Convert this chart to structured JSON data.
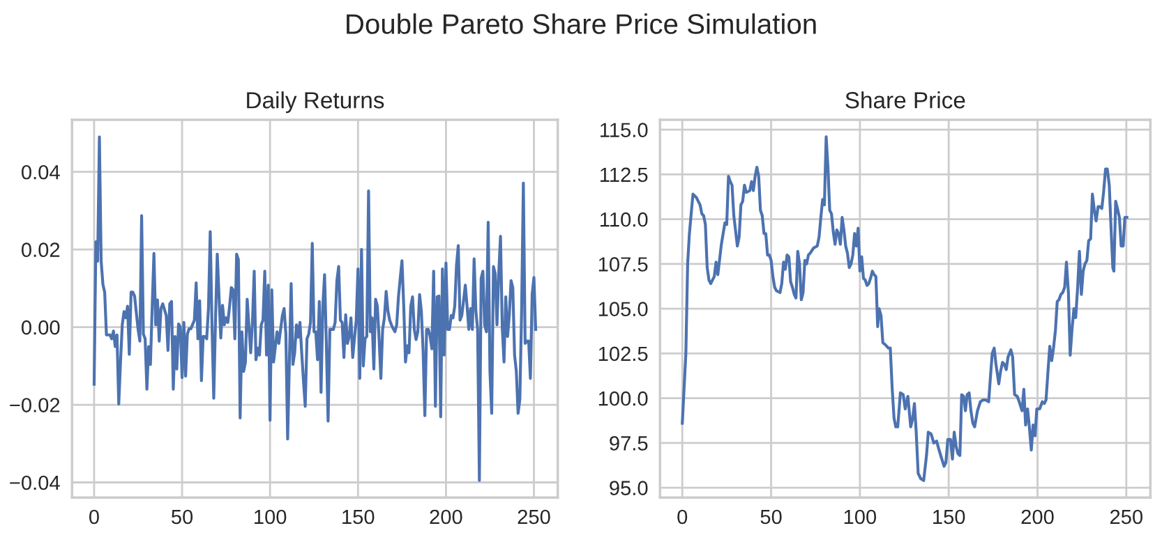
{
  "chart_data": [
    {
      "type": "line",
      "title": "Daily Returns",
      "series": [
        {
          "color": "#4c72b0",
          "x": [
            0,
            1,
            2,
            3,
            4,
            5,
            6,
            7,
            9,
            10,
            11,
            12,
            13,
            14,
            15,
            16,
            17,
            18,
            19,
            20,
            21,
            22,
            23,
            25,
            26,
            27,
            28,
            29,
            30,
            31,
            32,
            33,
            34,
            35,
            36,
            37,
            38,
            39,
            41,
            42,
            43,
            44,
            45,
            46,
            47,
            48,
            49,
            50,
            51,
            52,
            53,
            54,
            55,
            57,
            58,
            59,
            60,
            61,
            62,
            63,
            64,
            65,
            66,
            67,
            68,
            69,
            70,
            72,
            73,
            74,
            75,
            76,
            77,
            78,
            79,
            80,
            81,
            82,
            83,
            84,
            85,
            86,
            87,
            89,
            90,
            91,
            92,
            93,
            94,
            95,
            96,
            97,
            98,
            99,
            100,
            101,
            102,
            104,
            105,
            106,
            107,
            108,
            109,
            110,
            112,
            113,
            114,
            115,
            116,
            117,
            118,
            119,
            120,
            121,
            122,
            123,
            124,
            125,
            126,
            127,
            128,
            129,
            130,
            131,
            132,
            133,
            134,
            135,
            136,
            137,
            138,
            139,
            140,
            141,
            142,
            143,
            144,
            145,
            146,
            147,
            148,
            149,
            150,
            151,
            152,
            153,
            154,
            155,
            156,
            157,
            158,
            159,
            160,
            161,
            162,
            163,
            164,
            165,
            166,
            167,
            168,
            169,
            170,
            171,
            172,
            173,
            174,
            175,
            176,
            177,
            178,
            179,
            180,
            181,
            182,
            183,
            184,
            185,
            186,
            187,
            188,
            189,
            190,
            191,
            192,
            193,
            194,
            195,
            196,
            197,
            198,
            199,
            200,
            201,
            202,
            203,
            204,
            205,
            206,
            207,
            208,
            209,
            210,
            211,
            212,
            213,
            214,
            215,
            216,
            217,
            218,
            219,
            220,
            221,
            222,
            223,
            224,
            225,
            226,
            227,
            228,
            229,
            230,
            231,
            232,
            233,
            234,
            235,
            236,
            237,
            238,
            239,
            240,
            241,
            242,
            243,
            244,
            245,
            246,
            247,
            248,
            249,
            250,
            251
          ],
          "values": [
            -0.0147,
            0.022,
            0.017,
            0.049,
            0.017,
            0.011,
            0.009,
            -0.002,
            -0.002,
            -0.003,
            -0.001,
            -0.005,
            -0.002,
            -0.0198,
            -0.009,
            0.0006,
            0.004,
            0.0024,
            0.0054,
            -0.007,
            0.009,
            0.009,
            0.008,
            -0.0006,
            -0.0036,
            0.0287,
            -0.0018,
            -0.003,
            -0.016,
            -0.005,
            -0.0096,
            0.005,
            0.019,
            0.0006,
            0.007,
            -0.0036,
            0.0048,
            0.006,
            0.003,
            -0.006,
            0.006,
            0.0066,
            -0.016,
            -0.0024,
            -0.0108,
            0.0008,
            0,
            -0.013,
            0.0012,
            -0.0126,
            -0.0018,
            -0.0004,
            -0.0004,
            0.0018,
            0.0114,
            -0.003,
            0.0068,
            -0.0138,
            -0.0024,
            -0.0024,
            -0.003,
            0.0048,
            0.0246,
            0.0006,
            -0.0183,
            0.0018,
            0.0188,
            -0.0028,
            0.0056,
            0.0006,
            0.0024,
            0.0012,
            0.0054,
            0.0102,
            0.0096,
            -0.003,
            0.0188,
            0.0174,
            -0.0234,
            -0.0012,
            -0.0114,
            -0.009,
            0.0072,
            -0.0066,
            0.0012,
            0.0144,
            -0.0084,
            -0.0054,
            -0.0072,
            0.0006,
            0.0018,
            0.0144,
            -0.0072,
            0.0108,
            -0.024,
            0.0096,
            -0.009,
            -0.0012,
            -0.0042,
            -0.0006,
            0.003,
            0.0048,
            -0.0018,
            -0.0288,
            0.0112,
            -0.0096,
            -0.0066,
            0.0006,
            -0.0026,
            0.0012,
            -0.0066,
            -0.0138,
            -0.0204,
            -0.003,
            -0.0018,
            0.0012,
            0.0216,
            -0.0012,
            -0.0012,
            -0.0084,
            0.0066,
            -0.0168,
            0.0054,
            0.0135,
            -0.0042,
            -0.0242,
            -0.0006,
            -0.0006,
            -0.0006,
            0.0012,
            0.012,
            0.0156,
            0.0018,
            0.0012,
            -0.0078,
            0.0032,
            -0.0042,
            -0.0024,
            0.0024,
            -0.0078,
            -0.0028,
            0.0018,
            0.015,
            -0.0132,
            0.02,
            -0.01,
            -0.003,
            -0.0024,
            0.0351,
            -0.0012,
            0.0024,
            -0.0108,
            0.0072,
            0.0054,
            -0.003,
            -0.0132,
            -0.0006,
            0.0024,
            0.0092,
            0.0042,
            0.0018,
            0.0006,
            -0.0004,
            -0.0012,
            0.0006,
            0.0078,
            0.0126,
            0.0171,
            0.0054,
            -0.009,
            -0.0048,
            -0.0066,
            0.0054,
            0.0078,
            -0.0006,
            -0.0032,
            -0.0012,
            0.0084,
            0.0042,
            -0.006,
            -0.0228,
            -0.0006,
            -0.0006,
            -0.0024,
            -0.0056,
            0.0144,
            -0.0204,
            0.0078,
            0.008,
            -0.0231,
            0.015,
            -0.0072,
            0.0165,
            -0.0006,
            -0.0006,
            0.003,
            0.0024,
            0.0054,
            0.016,
            0.021,
            0.0018,
            0.003,
            0.0068,
            0.0108,
            0.0054,
            -0.0006,
            0.0048,
            -0.0006,
            0.0176,
            0.0042,
            -0.0006,
            -0.0395,
            0.0126,
            0.0144,
            0.0006,
            -0.0012,
            0.027,
            -0.0114,
            -0.0222,
            0.0156,
            0.0138,
            0.0006,
            0.0138,
            0.0234,
            0,
            -0.009,
            0.0078,
            -0.0024,
            0.003,
            0.012,
            0.0102,
            -0.0072,
            -0.0114,
            -0.0222,
            -0.0186,
            0.0042,
            0.0371,
            -0.0042,
            -0.0036,
            -0.0036,
            -0.0132,
            0.0084,
            0.0128,
            -0.0006
          ]
        }
      ],
      "xlim": [
        -12.55,
        263.55
      ],
      "xticks": [
        0,
        50,
        100,
        150,
        200,
        250
      ],
      "ylim": [
        -0.0439,
        0.0534
      ],
      "yticks": [
        {
          "value": -0.04,
          "label": "−0.04"
        },
        {
          "value": -0.02,
          "label": "−0.02"
        },
        {
          "value": 0,
          "label": "0.00"
        },
        {
          "value": 0.02,
          "label": "0.02"
        },
        {
          "value": 0.04,
          "label": "0.04"
        }
      ],
      "grid": true,
      "marker": "none",
      "line_style": "solid"
    },
    {
      "type": "line",
      "title": "Share Price",
      "series": [
        {
          "color": "#4c72b0",
          "x": [
            0,
            2,
            3,
            4,
            6,
            8,
            10,
            11,
            12,
            13,
            14,
            15,
            16,
            18,
            19,
            20,
            22,
            24,
            25,
            26,
            27,
            28,
            29,
            31,
            32,
            33,
            34,
            35,
            36,
            38,
            39,
            40,
            41,
            42,
            43,
            44,
            45,
            46,
            47,
            48,
            49,
            50,
            51,
            52,
            53,
            55,
            56,
            57,
            58,
            59,
            60,
            61,
            62,
            63,
            64,
            65,
            66,
            67,
            68,
            69,
            70,
            71,
            72,
            74,
            76,
            77,
            78,
            79,
            80,
            81,
            82,
            83,
            84,
            85,
            86,
            87,
            88,
            89,
            90,
            91,
            92,
            93,
            94,
            95,
            96,
            97,
            98,
            99,
            100,
            101,
            102,
            103,
            104,
            105,
            106,
            107,
            108,
            109,
            110,
            110.8,
            111.9,
            112.9,
            114.2,
            116,
            117.1,
            118.2,
            119.2,
            120.2,
            121.3,
            122.8,
            124.4,
            125.5,
            127,
            128.6,
            129.6,
            130.7,
            131.7,
            132.8,
            134.3,
            135.9,
            137.5,
            138.5,
            140.1,
            141.6,
            143.2,
            144.3,
            145.8,
            147.4,
            148.4,
            149.5,
            151,
            152.1,
            153.1,
            154.2,
            155.2,
            156.3,
            157.3,
            158.4,
            159.4,
            160.4,
            161.5,
            162.5,
            163.6,
            164.6,
            166.2,
            167.8,
            169.3,
            170.9,
            172.5,
            173.5,
            174.5,
            175.6,
            176.6,
            178.2,
            179.2,
            180.3,
            181.3,
            182.4,
            183.4,
            185,
            186,
            187.1,
            188.6,
            189.7,
            191.3,
            192.3,
            193.3,
            194.4,
            195.4,
            196.5,
            197.5,
            198.6,
            199.6,
            201.2,
            202.7,
            203.8,
            204.8,
            205.9,
            206.9,
            208,
            209,
            210.1,
            211.1,
            212.1,
            213.2,
            214.2,
            215.3,
            216.3,
            217.4,
            218.4,
            219.4,
            220.5,
            221.5,
            222.6,
            223.6,
            224.7,
            225.7,
            226.7,
            227.8,
            228.8,
            229.9,
            230.9,
            232,
            233,
            234.1,
            235.1,
            236.2,
            237.2,
            238.3,
            239.3,
            240.4,
            241.4,
            242.4,
            243,
            244,
            245,
            246.1,
            247.1,
            248.2,
            249.2,
            250.3
          ],
          "values": [
            98.6,
            102.5,
            107.5,
            109.2,
            111.4,
            111.2,
            110.8,
            110.3,
            110.2,
            109.7,
            107.3,
            106.6,
            106.4,
            106.8,
            107.6,
            106.9,
            108.6,
            109.8,
            109.7,
            112.4,
            112.1,
            111.9,
            110.2,
            108.5,
            109.0,
            110.8,
            111.0,
            111.9,
            111.5,
            111.6,
            112.1,
            111.6,
            112.4,
            112.9,
            112.4,
            110.5,
            110.2,
            109.2,
            109.2,
            108.0,
            108.0,
            107.7,
            106.8,
            106.2,
            106.0,
            105.9,
            106.4,
            107.6,
            107.2,
            108.0,
            107.9,
            106.5,
            106.2,
            105.8,
            105.6,
            108.2,
            107.5,
            105.5,
            105.9,
            107.7,
            107.5,
            108.0,
            108.1,
            108.4,
            108.5,
            109.0,
            110.1,
            111.1,
            110.8,
            114.6,
            112.9,
            110.5,
            110.3,
            109.3,
            108.6,
            109.4,
            109.2,
            108.6,
            110.1,
            109.4,
            108.5,
            108.1,
            107.3,
            107.5,
            108.0,
            109.2,
            108.5,
            109.5,
            107.1,
            107.9,
            106.7,
            106.6,
            106.3,
            106.4,
            106.7,
            107.1,
            106.9,
            106.8,
            104.0,
            105.0,
            104.6,
            103.1,
            103.0,
            102.8,
            102.8,
            100.5,
            98.9,
            98.4,
            98.4,
            100.3,
            100.2,
            99.4,
            100.1,
            98.4,
            98.8,
            99.7,
            98.1,
            95.8,
            95.5,
            95.4,
            96.8,
            98.1,
            98.0,
            97.5,
            97.6,
            97.2,
            96.7,
            96.2,
            96.4,
            97.7,
            97.7,
            96.6,
            98.1,
            97.3,
            96.9,
            96.8,
            100.2,
            100.1,
            99.3,
            100.2,
            100.3,
            99.3,
            98.6,
            98.4,
            99.3,
            99.8,
            99.9,
            99.9,
            99.8,
            101.2,
            102.5,
            102.8,
            101.9,
            100.8,
            101.5,
            102.0,
            101.9,
            101.6,
            102.3,
            102.7,
            102.3,
            100.2,
            100.1,
            99.8,
            99.3,
            100.5,
            98.5,
            99.4,
            98.4,
            97.1,
            98.5,
            97.9,
            99.4,
            99.4,
            99.8,
            99.7,
            99.9,
            101.5,
            102.9,
            102.1,
            102.8,
            103.8,
            105.4,
            105.5,
            105.8,
            105.9,
            106.2,
            107.6,
            105.9,
            102.4,
            103.8,
            105.0,
            104.5,
            106.2,
            108.2,
            105.8,
            107.1,
            107.5,
            107.7,
            108.8,
            108.9,
            111.4,
            110.5,
            109.9,
            110.7,
            110.7,
            110.6,
            111.5,
            112.8,
            112.8,
            111.9,
            109.5,
            107.3,
            107.1,
            111.0,
            110.6,
            110.1,
            108.5,
            108.5,
            110.1,
            110.1
          ]
        }
      ],
      "xlim": [
        -12.55,
        263.55
      ],
      "xticks": [
        0,
        50,
        100,
        150,
        200,
        250
      ],
      "ylim": [
        94.45,
        115.55
      ],
      "yticks": [
        {
          "value": 95,
          "label": "95.0"
        },
        {
          "value": 97.5,
          "label": "97.5"
        },
        {
          "value": 100,
          "label": "100.0"
        },
        {
          "value": 102.5,
          "label": "102.5"
        },
        {
          "value": 105,
          "label": "105.0"
        },
        {
          "value": 107.5,
          "label": "107.5"
        },
        {
          "value": 110,
          "label": "110.0"
        },
        {
          "value": 112.5,
          "label": "112.5"
        },
        {
          "value": 115,
          "label": "115.0"
        }
      ],
      "grid": true,
      "marker": "none",
      "line_style": "solid",
      "annotations": [
        "Double Pareto Share Price Simulation"
      ]
    }
  ]
}
